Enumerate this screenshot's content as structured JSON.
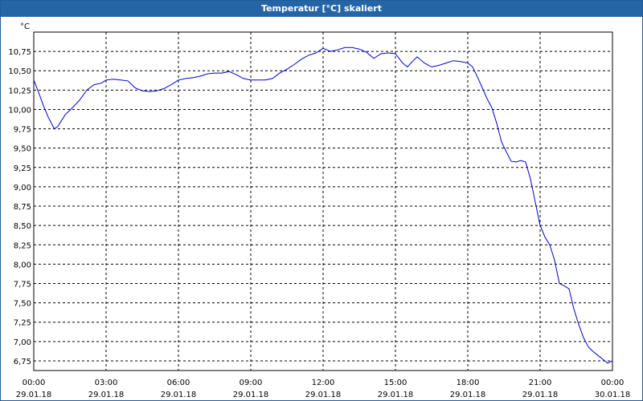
{
  "window": {
    "title": "Temperatur [°C] skaliert"
  },
  "colors": {
    "titlebar": "#2565a5",
    "line": "#0000cc",
    "grid": "#000000"
  },
  "chart_data": {
    "type": "line",
    "title": "Temperatur [°C] skaliert",
    "ylabel": "°C",
    "xlabel": "",
    "ylim": [
      6.625,
      11.0
    ],
    "xlim": [
      0,
      24
    ],
    "grid": true,
    "yticks": [
      {
        "value": 10.75,
        "label": "10,75"
      },
      {
        "value": 10.5,
        "label": "10,50"
      },
      {
        "value": 10.25,
        "label": "10,25"
      },
      {
        "value": 10.0,
        "label": "10,00"
      },
      {
        "value": 9.75,
        "label": "9,75"
      },
      {
        "value": 9.5,
        "label": "9,50"
      },
      {
        "value": 9.25,
        "label": "9,25"
      },
      {
        "value": 9.0,
        "label": "9,00"
      },
      {
        "value": 8.75,
        "label": "8,75"
      },
      {
        "value": 8.5,
        "label": "8,50"
      },
      {
        "value": 8.25,
        "label": "8,25"
      },
      {
        "value": 8.0,
        "label": "8,00"
      },
      {
        "value": 7.75,
        "label": "7,75"
      },
      {
        "value": 7.5,
        "label": "7,50"
      },
      {
        "value": 7.25,
        "label": "7,25"
      },
      {
        "value": 7.0,
        "label": "7,00"
      },
      {
        "value": 6.75,
        "label": "6,75"
      }
    ],
    "xticks": [
      {
        "value": 0,
        "time": "00:00",
        "date": "29.01.18"
      },
      {
        "value": 3,
        "time": "03:00",
        "date": "29.01.18"
      },
      {
        "value": 6,
        "time": "06:00",
        "date": "29.01.18"
      },
      {
        "value": 9,
        "time": "09:00",
        "date": "29.01.18"
      },
      {
        "value": 12,
        "time": "12:00",
        "date": "29.01.18"
      },
      {
        "value": 15,
        "time": "15:00",
        "date": "29.01.18"
      },
      {
        "value": 18,
        "time": "18:00",
        "date": "29.01.18"
      },
      {
        "value": 21,
        "time": "21:00",
        "date": "29.01.18"
      },
      {
        "value": 24,
        "time": "00:00",
        "date": "30.01.18"
      }
    ],
    "series": [
      {
        "x": [
          0.0,
          0.2,
          0.4,
          0.6,
          0.85,
          1.0,
          1.3,
          1.6,
          1.9,
          2.2,
          2.5,
          2.8,
          3.0,
          3.3,
          3.6,
          3.9,
          4.2,
          4.5,
          4.8,
          5.1,
          5.4,
          5.7,
          6.0,
          6.3,
          6.6,
          6.9,
          7.2,
          7.5,
          7.8,
          8.1,
          8.4,
          8.7,
          9.0,
          9.3,
          9.6,
          9.9,
          10.2,
          10.5,
          10.8,
          11.1,
          11.4,
          11.7,
          12.0,
          12.3,
          12.6,
          12.9,
          13.2,
          13.5,
          13.8,
          14.1,
          14.4,
          14.7,
          15.0,
          15.3,
          15.5,
          15.7,
          15.9,
          16.2,
          16.5,
          16.8,
          17.1,
          17.4,
          17.7,
          18.0,
          18.2,
          18.4,
          18.6,
          18.8,
          19.0,
          19.2,
          19.4,
          19.6,
          19.8,
          20.0,
          20.2,
          20.4,
          20.6,
          20.8,
          21.0,
          21.2,
          21.4,
          21.6,
          21.8,
          22.0,
          22.2,
          22.4,
          22.6,
          22.8,
          23.0,
          23.2,
          23.4,
          23.6,
          23.8,
          24.0
        ],
        "y": [
          10.38,
          10.22,
          10.05,
          9.9,
          9.75,
          9.78,
          9.93,
          10.02,
          10.12,
          10.25,
          10.32,
          10.34,
          10.38,
          10.39,
          10.38,
          10.37,
          10.28,
          10.24,
          10.23,
          10.24,
          10.27,
          10.32,
          10.38,
          10.4,
          10.41,
          10.43,
          10.46,
          10.47,
          10.47,
          10.49,
          10.45,
          10.4,
          10.38,
          10.38,
          10.38,
          10.4,
          10.47,
          10.52,
          10.58,
          10.65,
          10.7,
          10.73,
          10.79,
          10.75,
          10.77,
          10.8,
          10.8,
          10.78,
          10.74,
          10.66,
          10.72,
          10.73,
          10.72,
          10.6,
          10.55,
          10.62,
          10.68,
          10.6,
          10.55,
          10.57,
          10.6,
          10.63,
          10.62,
          10.6,
          10.55,
          10.42,
          10.28,
          10.14,
          10.02,
          9.82,
          9.58,
          9.45,
          9.33,
          9.32,
          9.34,
          9.32,
          9.1,
          8.8,
          8.5,
          8.35,
          8.25,
          8.05,
          7.75,
          7.72,
          7.68,
          7.42,
          7.22,
          7.05,
          6.93,
          6.87,
          6.82,
          6.77,
          6.72,
          6.75
        ]
      }
    ]
  }
}
